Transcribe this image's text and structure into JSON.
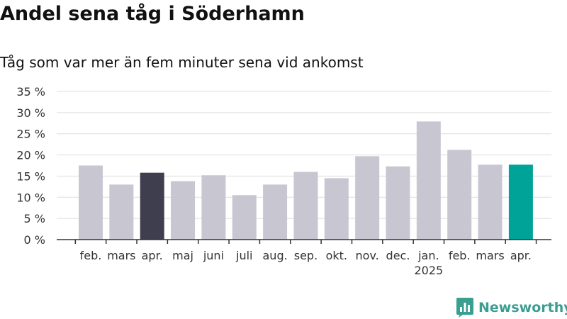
{
  "title": "Andel sena tåg i Söderhamn",
  "subtitle": "Tåg som var mer än fem minuter sena vid ankomst",
  "chart_data": {
    "type": "bar",
    "categories": [
      "feb.",
      "mars",
      "apr.",
      "maj",
      "juni",
      "juli",
      "aug.",
      "sep.",
      "okt.",
      "nov.",
      "dec.",
      "jan.",
      "feb.",
      "mars",
      "apr."
    ],
    "year_label": "2025",
    "year_label_under_category_index": 11,
    "values": [
      17.5,
      13.0,
      15.8,
      13.8,
      15.2,
      10.5,
      13.0,
      16.0,
      14.5,
      19.7,
      17.3,
      27.9,
      21.2,
      17.7,
      17.7
    ],
    "unit": "%",
    "ylim": [
      0,
      35
    ],
    "yticks": [
      0,
      5,
      10,
      15,
      20,
      25,
      30,
      35
    ],
    "ytick_labels": [
      "0 %",
      "5 %",
      "10 %",
      "15 %",
      "20 %",
      "25 %",
      "30 %",
      "35 %"
    ],
    "grid": true,
    "colors": {
      "default_bar": "#c8c6d1",
      "highlight_dark": "#3f3e4e",
      "highlight_teal": "#00a398"
    },
    "highlight": {
      "2": "highlight_dark",
      "14": "highlight_teal"
    }
  },
  "logo": {
    "text": "Newsworthy",
    "icon": "newsworthy-chart-bubble-icon",
    "color": "#3a9e91"
  }
}
